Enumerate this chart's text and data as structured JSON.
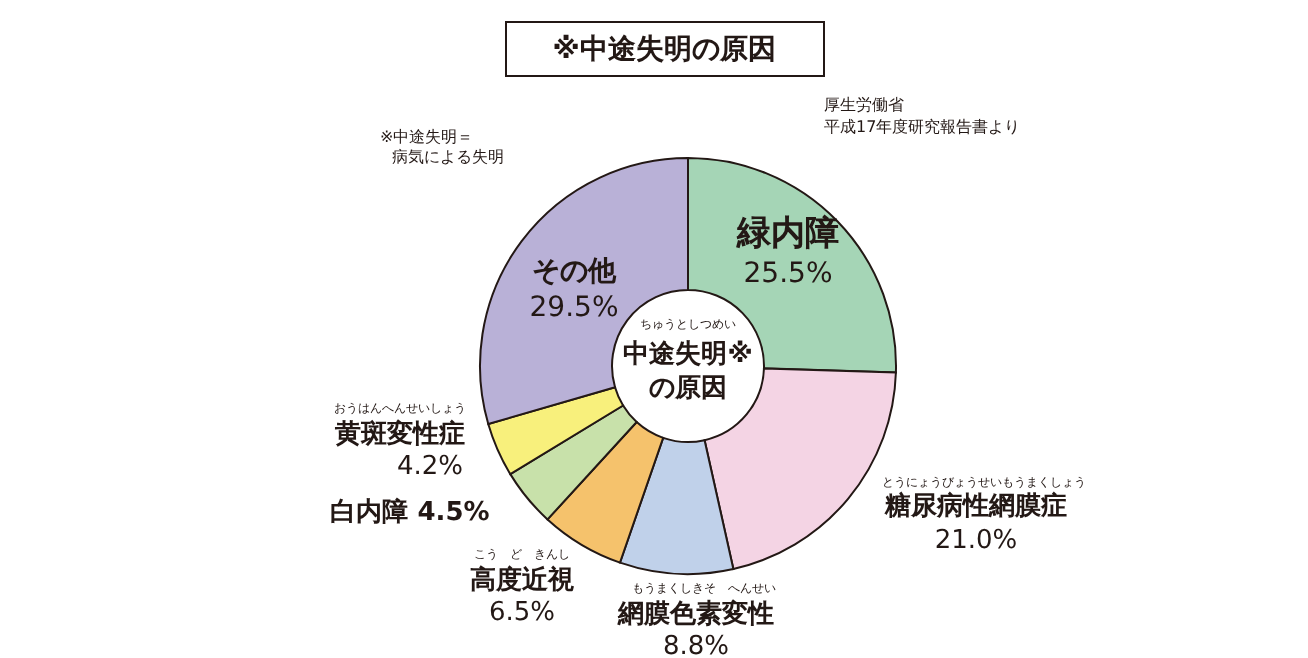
{
  "chart_data": {
    "type": "donut",
    "title": "※中途失明の原因",
    "categories": [
      "緑内障",
      "糖尿病性網膜症",
      "網膜色素変性",
      "高度近視",
      "白内障",
      "黄斑変性症",
      "その他"
    ],
    "values": [
      25.5,
      21.0,
      8.8,
      6.5,
      4.5,
      4.2,
      29.5
    ],
    "value_labels": [
      "25.5%",
      "21.0%",
      "8.8%",
      "6.5%",
      "4.5%",
      "4.2%",
      "29.5%"
    ],
    "colors": [
      "#a5d5b6",
      "#f4d4e4",
      "#c0d1ea",
      "#f5c26c",
      "#c8e1aa",
      "#f8f07c",
      "#b9b1d7"
    ],
    "annotations": [
      "中途失明※",
      "の原因",
      "ちゅうとしつめい",
      "※中途失明＝",
      "病気による失明",
      "厚生労働省",
      "平成17年度研究報告書より",
      "とうにょうびょうせいもうまくしょう",
      "もうまくしきそ　へんせい",
      "こう　ど　きんし",
      "おうはんへんせいしょう"
    ]
  }
}
